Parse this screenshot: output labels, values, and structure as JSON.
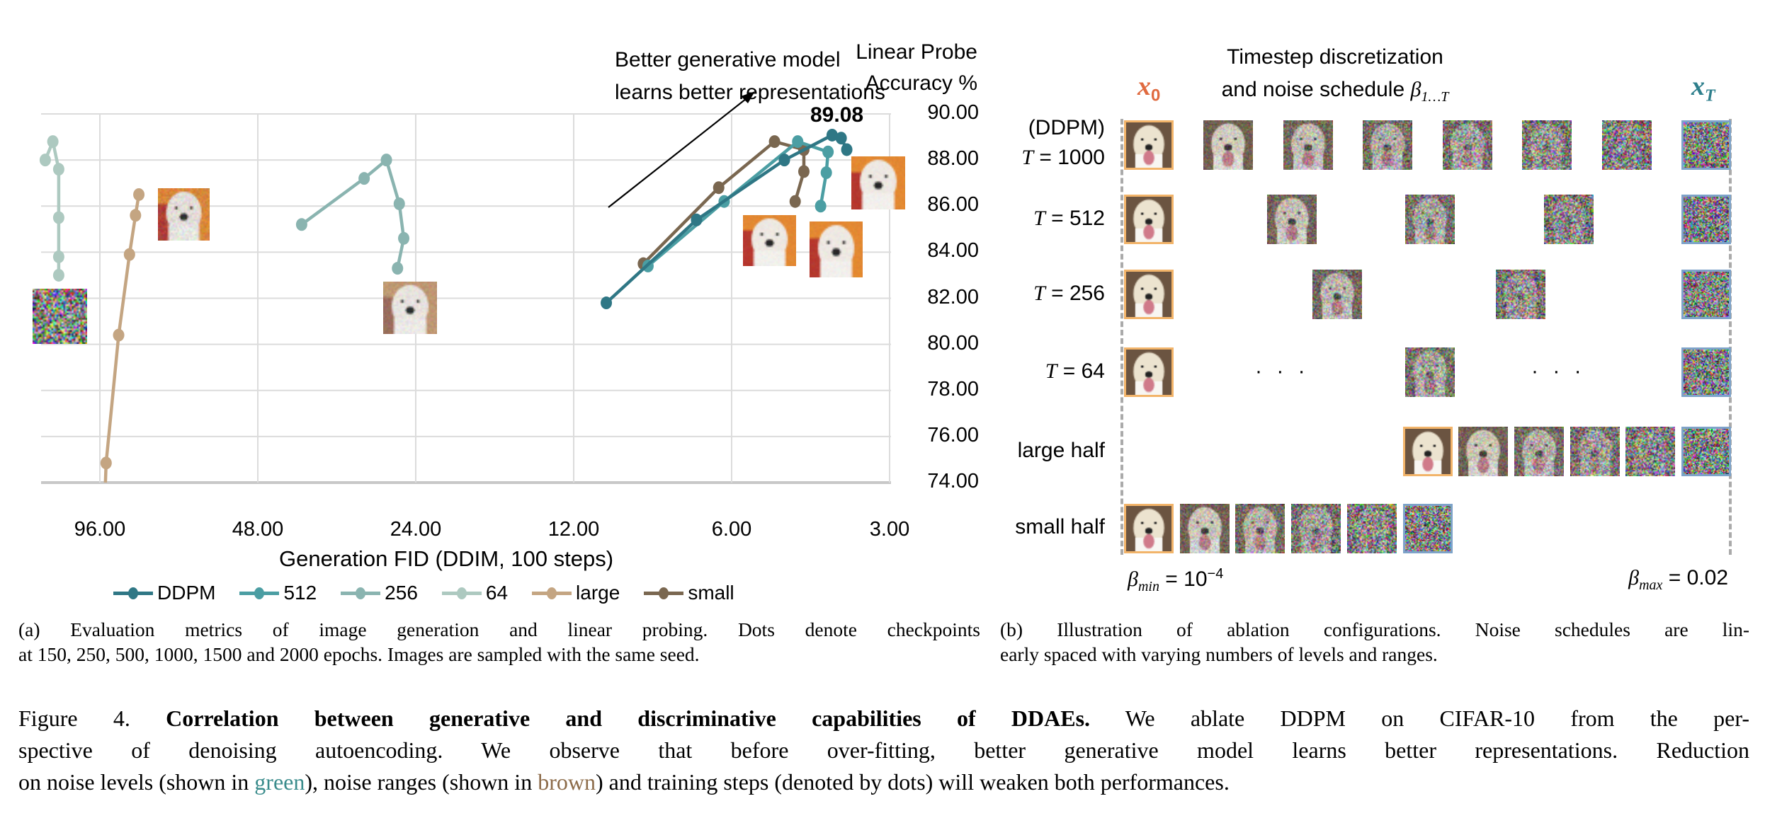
{
  "panel_a": {
    "annotation_lines": [
      "Better generative model",
      "learns better representations"
    ],
    "ylabel_lines": [
      "Linear Probe",
      "Accuracy %"
    ],
    "peak_label": "89.08",
    "caption_lines": [
      "(a)  Evaluation metrics of image generation and linear probing. Dots denote checkpoints",
      "at 150, 250, 500, 1000, 1500 and 2000 epochs. Images are sampled with the same seed."
    ]
  },
  "chart_data": {
    "type": "line",
    "xlabel": "Generation FID (DDIM, 100 steps)",
    "ylabel": "Linear Probe Accuracy %",
    "x_scale": "log2, reversed",
    "x_ticks": [
      "96.00",
      "48.00",
      "24.00",
      "12.00",
      "6.00",
      "3.00"
    ],
    "y_ticks": [
      "90.00",
      "88.00",
      "86.00",
      "84.00",
      "82.00",
      "80.00",
      "78.00",
      "76.00",
      "74.00"
    ],
    "xlim": [
      124,
      3
    ],
    "ylim": [
      74,
      90
    ],
    "grid": true,
    "legend_position": "bottom",
    "series": [
      {
        "name": "DDPM",
        "color": "#2f7785",
        "points": [
          [
            10.4,
            81.8
          ],
          [
            7.0,
            85.4
          ],
          [
            4.76,
            88.0
          ],
          [
            3.86,
            89.08
          ],
          [
            3.71,
            88.95
          ],
          [
            3.62,
            88.45
          ]
        ]
      },
      {
        "name": "512",
        "color": "#4b9ea3",
        "points": [
          [
            8.66,
            83.4
          ],
          [
            6.2,
            86.2
          ],
          [
            4.49,
            88.8
          ],
          [
            3.93,
            88.35
          ],
          [
            3.96,
            87.45
          ],
          [
            4.06,
            86.0
          ]
        ]
      },
      {
        "name": "256",
        "color": "#8ab4b0",
        "points": [
          [
            39.6,
            85.2
          ],
          [
            30.1,
            87.2
          ],
          [
            27.3,
            88.0
          ],
          [
            25.8,
            86.1
          ],
          [
            25.3,
            84.6
          ],
          [
            26.0,
            83.3
          ]
        ]
      },
      {
        "name": "64",
        "color": "#adc9c0",
        "points": [
          [
            122,
            88.0
          ],
          [
            118,
            88.8
          ],
          [
            115,
            87.6
          ],
          [
            115,
            85.5
          ],
          [
            115,
            83.8
          ],
          [
            115,
            83.0
          ]
        ]
      },
      {
        "name": "large",
        "color": "#c4a582",
        "points": [
          [
            80.9,
            86.5
          ],
          [
            82.1,
            85.6
          ],
          [
            84.3,
            83.9
          ],
          [
            88.4,
            80.4
          ],
          [
            93.4,
            74.85
          ]
        ]
      },
      {
        "name": "small",
        "color": "#7a6750",
        "points": [
          [
            8.84,
            83.5
          ],
          [
            6.35,
            86.8
          ],
          [
            4.97,
            88.8
          ],
          [
            4.37,
            88.45
          ],
          [
            4.37,
            87.5
          ],
          [
            4.54,
            86.2
          ]
        ]
      }
    ]
  },
  "panel_b": {
    "title_lines": [
      "Timestep discretization",
      "and noise schedule "
    ],
    "beta_symbol": "β",
    "beta_sub": "1…T",
    "x0_label": "x",
    "x0_sub": "0",
    "xT_label": "x",
    "xT_sub": "T",
    "x0_color": "#e06a3f",
    "xT_color": "#2e7f8c",
    "rows": [
      {
        "label_top": "(DDPM)",
        "label_var": "T",
        "label_eq": " = 1000"
      },
      {
        "label_var": "T",
        "label_eq": " = 512"
      },
      {
        "label_var": "T",
        "label_eq": " = 256"
      },
      {
        "label_var": "T",
        "label_eq": " = 64"
      },
      {
        "label": "large half"
      },
      {
        "label": "small half"
      }
    ],
    "ellipsis": "· · ·",
    "beta_min": {
      "sym": "β",
      "sub": "min",
      "eq": " = 10",
      "sup": "−4"
    },
    "beta_max": {
      "sym": "β",
      "sub": "max",
      "eq": " = 0.02"
    },
    "caption_lines": [
      "(b)  Illustration of ablation configurations. Noise schedules are lin-",
      "early spaced with varying numbers of levels and ranges."
    ]
  },
  "figure_caption": {
    "label": "Figure 4.",
    "bold": "Correlation between generative and discriminative capabilities of DDAEs.",
    "line1_rest": " We ablate DDPM on CIFAR-10 from the per-",
    "line2": "spective of denoising autoencoding. We observe that before over-fitting, better generative model learns better representations. Reduction",
    "line3_a": "on noise levels (shown in ",
    "green_word": "green",
    "line3_b": "), noise ranges (shown in ",
    "brown_word": "brown",
    "line3_c": ") and training steps (denoted by dots) will weaken both performances.",
    "green_color": "#3a8c8c",
    "brown_color": "#8d6c4a"
  }
}
